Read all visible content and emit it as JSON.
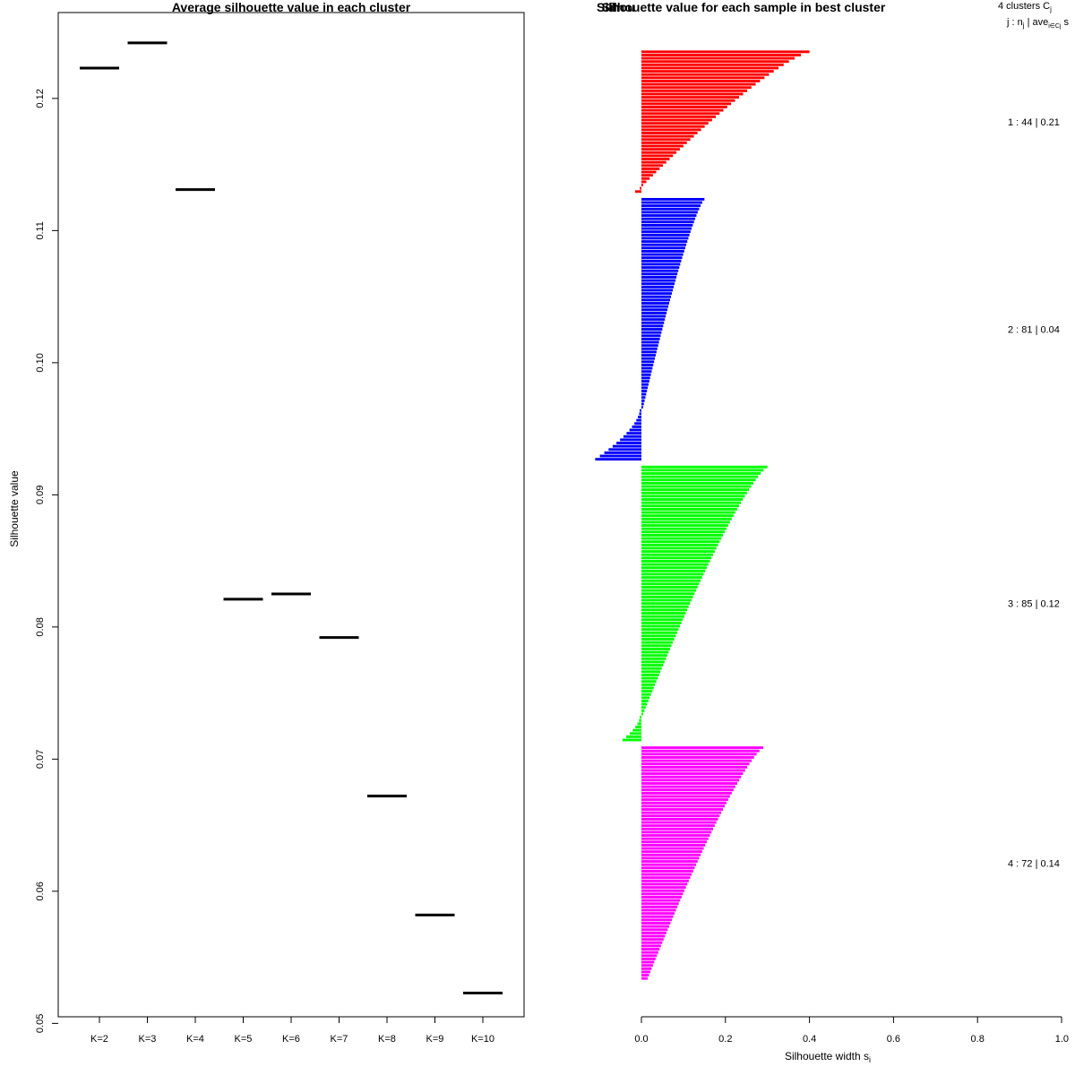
{
  "left_chart_data": {
    "type": "line",
    "title": "Average silhouette value in each cluster",
    "xlabel": "",
    "ylabel": "Silhouette value",
    "categories": [
      "K=2",
      "K=3",
      "K=4",
      "K=5",
      "K=6",
      "K=7",
      "K=8",
      "K=9",
      "K=10"
    ],
    "values": [
      0.1223,
      0.1242,
      0.1131,
      0.0821,
      0.0825,
      0.0792,
      0.0672,
      0.0582,
      0.0523
    ],
    "ylim": [
      0.0505,
      0.1265
    ],
    "yticks": [
      0.05,
      0.06,
      0.07,
      0.08,
      0.09,
      0.1,
      0.11,
      0.12
    ],
    "ytick_labels": [
      "0.05",
      "0.06",
      "0.07",
      "0.08",
      "0.09",
      "0.10",
      "0.11",
      "0.12"
    ]
  },
  "right_chart_data": {
    "type": "bar",
    "title": "Silhouette value for each sample in best cluster",
    "overlap_title": "Silhou",
    "xlabel": "Silhouette width s",
    "xlabel_sub": "i",
    "xlim": [
      0,
      1
    ],
    "xticks": [
      0,
      0.2,
      0.4,
      0.6,
      0.8,
      1.0
    ],
    "xtick_labels": [
      "0.0",
      "0.2",
      "0.4",
      "0.6",
      "0.8",
      "1.0"
    ],
    "legend_header": "4 clusters C",
    "legend_header_sub": "j",
    "legend_sub_line": "j : n",
    "legend_sub_line_sub": "j",
    "legend_sub_line_rest": " | ave",
    "legend_sub_line_sub2": "i∈Cj",
    "legend_sub_line_end": " s",
    "series": [
      {
        "name": "1",
        "n": 44,
        "ave": "0.21",
        "label": "1 :  44  |  0.21",
        "color": "#ff0000",
        "range": [
          0.4,
          -0.015
        ],
        "neg_count": 2
      },
      {
        "name": "2",
        "n": 81,
        "ave": "0.04",
        "label": "2 :  81  |  0.04",
        "color": "#0000ff",
        "range": [
          0.15,
          -0.11
        ],
        "neg_count": 16
      },
      {
        "name": "3",
        "n": 85,
        "ave": "0.12",
        "label": "3 :  85  |  0.12",
        "color": "#00ff00",
        "range": [
          0.3,
          -0.045
        ],
        "neg_count": 8
      },
      {
        "name": "4",
        "n": 72,
        "ave": "0.14",
        "label": "4 :  72  |  0.14",
        "color": "#ff00ff",
        "range": [
          0.29,
          0.015
        ],
        "neg_count": 0
      }
    ]
  }
}
